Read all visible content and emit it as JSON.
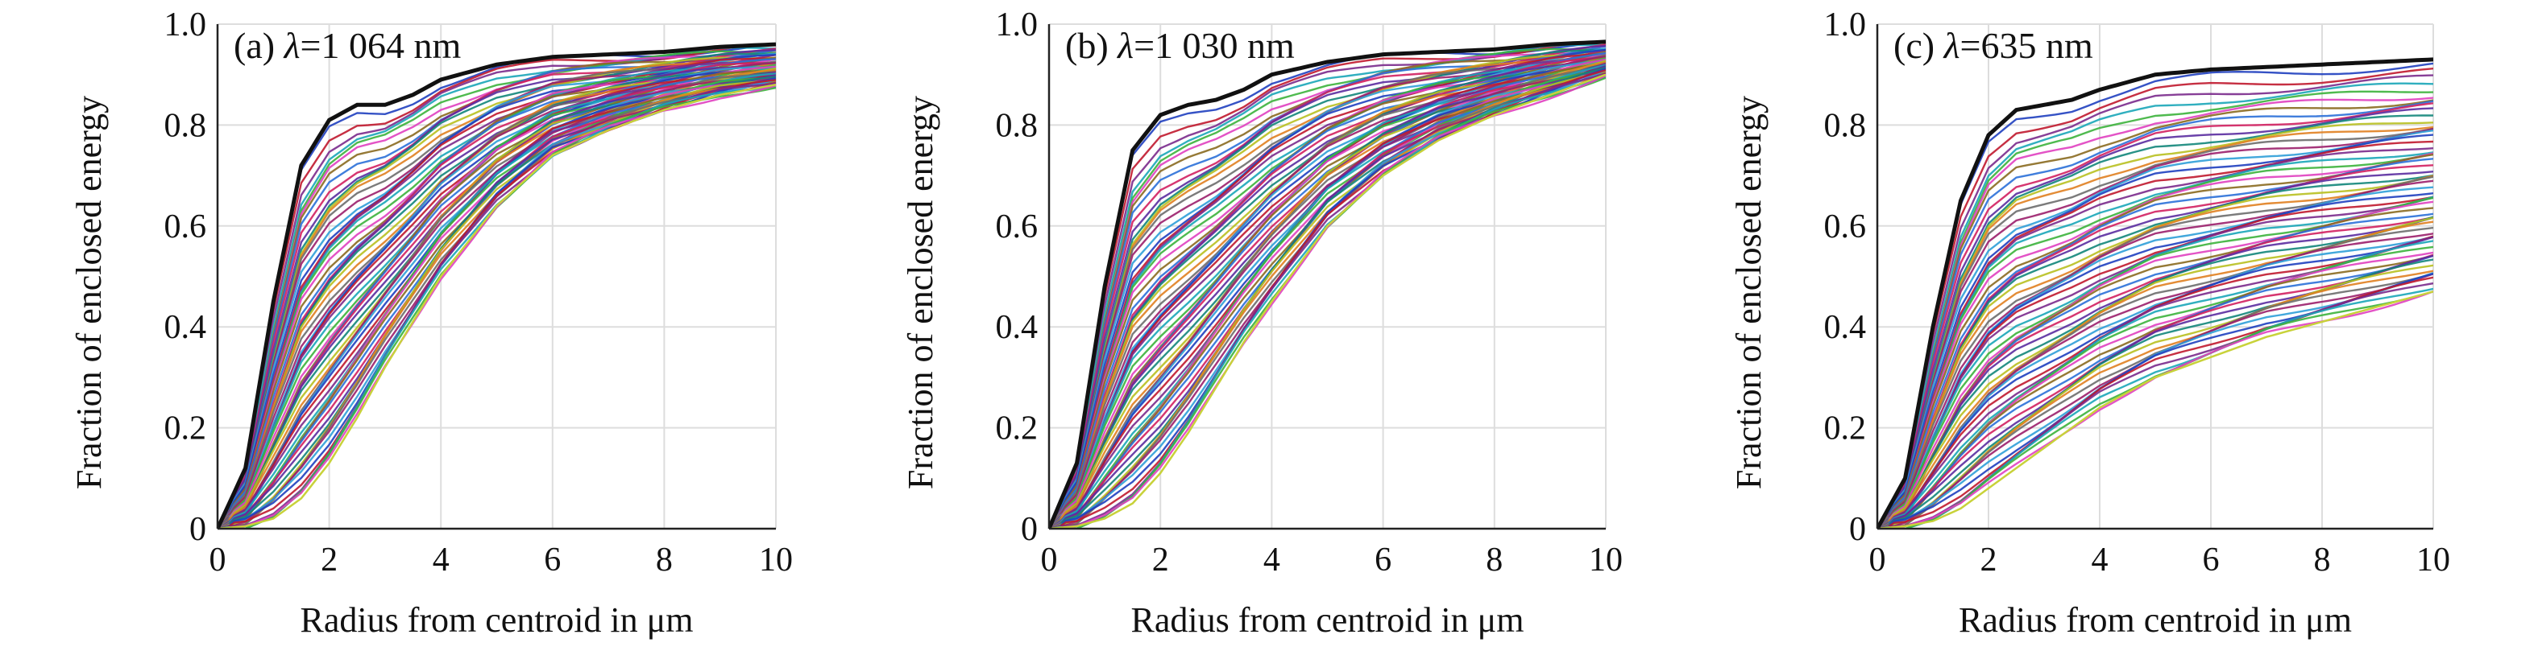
{
  "chart_data": [
    {
      "type": "line",
      "title": "(a) λ=1 064 nm",
      "title_prefix": "(a) ",
      "title_symbol": "λ",
      "title_suffix": "=1 064 nm",
      "xlabel": "Radius from centroid in μm",
      "ylabel": "Fraction of enclosed energy",
      "xlim": [
        0,
        10
      ],
      "ylim": [
        0,
        1.0
      ],
      "xticks": [
        "0",
        "2",
        "4",
        "6",
        "8",
        "10"
      ],
      "yticks": [
        "0",
        "0.2",
        "0.4",
        "0.6",
        "0.8",
        "1.0"
      ],
      "grid": true,
      "legend": "none",
      "envelope_upper": {
        "x": [
          0,
          0.5,
          1,
          1.5,
          2,
          2.5,
          3,
          3.5,
          4,
          5,
          6,
          7,
          8,
          9,
          10
        ],
        "y": [
          0,
          0.12,
          0.45,
          0.72,
          0.81,
          0.84,
          0.84,
          0.86,
          0.89,
          0.92,
          0.935,
          0.94,
          0.945,
          0.955,
          0.96
        ]
      },
      "envelope_lower": {
        "x": [
          0,
          0.5,
          1,
          1.5,
          2,
          2.5,
          3,
          3.5,
          4,
          5,
          6,
          7,
          8,
          9,
          10
        ],
        "y": [
          0,
          0.005,
          0.02,
          0.06,
          0.13,
          0.22,
          0.32,
          0.41,
          0.5,
          0.64,
          0.74,
          0.79,
          0.83,
          0.86,
          0.88
        ]
      }
    },
    {
      "type": "line",
      "title": "(b) λ=1 030 nm",
      "title_prefix": "(b) ",
      "title_symbol": "λ",
      "title_suffix": "=1 030 nm",
      "xlabel": "Radius from centroid in μm",
      "ylabel": "Fraction of enclosed energy",
      "xlim": [
        0,
        10
      ],
      "ylim": [
        0,
        1.0
      ],
      "xticks": [
        "0",
        "2",
        "4",
        "6",
        "8",
        "10"
      ],
      "yticks": [
        "0",
        "0.2",
        "0.4",
        "0.6",
        "0.8",
        "1.0"
      ],
      "grid": true,
      "legend": "none",
      "envelope_upper": {
        "x": [
          0,
          0.5,
          1,
          1.5,
          2,
          2.5,
          3,
          3.5,
          4,
          5,
          6,
          7,
          8,
          9,
          10
        ],
        "y": [
          0,
          0.13,
          0.48,
          0.75,
          0.82,
          0.84,
          0.85,
          0.87,
          0.9,
          0.925,
          0.94,
          0.945,
          0.95,
          0.96,
          0.965
        ]
      },
      "envelope_lower": {
        "x": [
          0,
          0.5,
          1,
          1.5,
          2,
          2.5,
          3,
          3.5,
          4,
          5,
          6,
          7,
          8,
          9,
          10
        ],
        "y": [
          0,
          0.005,
          0.02,
          0.05,
          0.11,
          0.19,
          0.28,
          0.37,
          0.45,
          0.6,
          0.7,
          0.77,
          0.82,
          0.86,
          0.9
        ]
      }
    },
    {
      "type": "line",
      "title": "(c) λ=635 nm",
      "title_prefix": "(c) ",
      "title_symbol": "λ",
      "title_suffix": "=635 nm",
      "xlabel": "Radius from centroid in μm",
      "ylabel": "Fraction of enclosed energy",
      "xlim": [
        0,
        10
      ],
      "ylim": [
        0,
        1.0
      ],
      "xticks": [
        "0",
        "2",
        "4",
        "6",
        "8",
        "10"
      ],
      "yticks": [
        "0",
        "0.2",
        "0.4",
        "0.6",
        "0.8",
        "1.0"
      ],
      "grid": true,
      "legend": "none",
      "envelope_upper": {
        "x": [
          0,
          0.5,
          1,
          1.5,
          2,
          2.5,
          3,
          3.5,
          4,
          5,
          6,
          7,
          8,
          9,
          10
        ],
        "y": [
          0,
          0.1,
          0.4,
          0.65,
          0.78,
          0.83,
          0.84,
          0.85,
          0.87,
          0.9,
          0.91,
          0.915,
          0.92,
          0.925,
          0.93
        ]
      },
      "envelope_lower": {
        "x": [
          0,
          0.5,
          1,
          1.5,
          2,
          2.5,
          3,
          3.5,
          4,
          5,
          6,
          7,
          8,
          9,
          10
        ],
        "y": [
          0,
          0.005,
          0.015,
          0.04,
          0.08,
          0.12,
          0.16,
          0.2,
          0.24,
          0.3,
          0.34,
          0.38,
          0.41,
          0.44,
          0.47
        ]
      }
    }
  ],
  "colors": {
    "curve_palette": [
      "#1f3fbf",
      "#c0182e",
      "#7a2a8c",
      "#1aa6b8",
      "#3cb33c",
      "#e040c0",
      "#8a6a20",
      "#2b70d8",
      "#d12060",
      "#5a2ca0",
      "#12867a",
      "#b8c020",
      "#e07f20",
      "#6d6d6d",
      "#9b1f6b",
      "#2f9fd8"
    ],
    "envelope_upper": "#111111",
    "envelope_lower": "#c8d23a",
    "grid": "#dddddd",
    "axis": "#222222"
  }
}
